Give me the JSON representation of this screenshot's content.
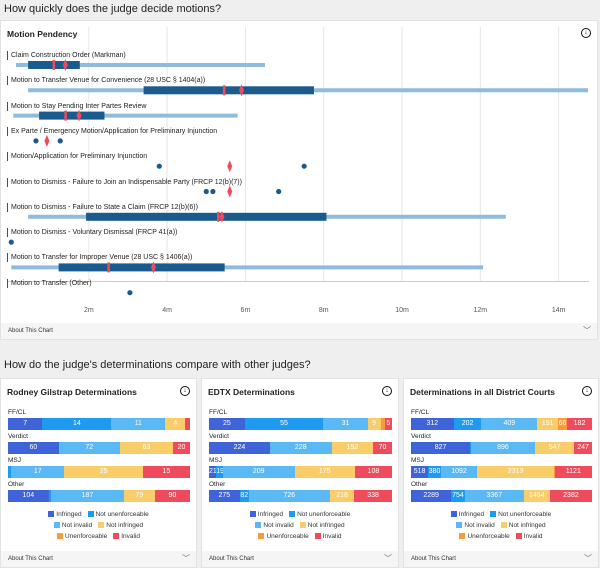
{
  "sections": {
    "pendency_heading": "How quickly does the judge decide motions?",
    "compare_heading": "How do the judge's determinations compare with other judges?"
  },
  "about_label": "About This Chart",
  "colors": {
    "box": "#1b5a8c",
    "whisker": "#8fbcdc",
    "median": "#f04b5c",
    "mean": "#f04b5c",
    "grid": "#e6e6e6"
  },
  "chart_data": [
    {
      "type": "boxplot",
      "title": "Motion Pendency",
      "x_unit": "months",
      "xlim": [
        0,
        14.75
      ],
      "grid": true,
      "x_ticks": [
        "2m",
        "4m",
        "6m",
        "8m",
        "10m",
        "12m",
        "14m"
      ],
      "x_tick_values": [
        2,
        4,
        6,
        8,
        10,
        12,
        14
      ],
      "rows": [
        {
          "label": "Claim Construction Order (Markman)",
          "min": 0.14,
          "q1": 0.45,
          "median": 1.1,
          "q3": 1.77,
          "max": 6.5,
          "mean": 1.4
        },
        {
          "label": "Motion to Transfer Venue for Convenience (28 USC § 1404(a))",
          "min": 0.45,
          "q1": 3.4,
          "median": 5.45,
          "q3": 7.75,
          "max": 14.75,
          "mean": 5.9
        },
        {
          "label": "Motion to Stay Pending Inter Partes Review",
          "min": 0.07,
          "q1": 0.73,
          "median": 1.4,
          "q3": 2.4,
          "max": 5.8,
          "mean": 1.75
        },
        {
          "label": "Ex Parte / Emergency Motion/Application for Preliminary Injunction",
          "points": [
            0.65,
            1.27
          ],
          "mean": 0.93
        },
        {
          "label": "Motion/Application for Preliminary Injunction",
          "points": [
            3.8,
            7.5
          ],
          "mean": 5.6
        },
        {
          "label": "Motion to Dismiss - Failure to Join an Indispensable Party (FRCP 12(b)(7))",
          "points": [
            5.0,
            5.17,
            6.85
          ],
          "mean": 5.6
        },
        {
          "label": "Motion to Dismiss - Failure to State a Claim (FRCP 12(b)(6))",
          "min": 0.45,
          "q1": 1.93,
          "median": 5.3,
          "q3": 8.07,
          "max": 12.65,
          "mean": 5.4
        },
        {
          "label": "Motion to Dismiss - Voluntary Dismissal (FRCP 41(a))",
          "points": [
            0.02
          ]
        },
        {
          "label": "Motion to Transfer for Improper Venue (28 USC § 1406(a))",
          "min": 0.02,
          "q1": 1.23,
          "median": 2.5,
          "q3": 5.47,
          "max": 12.07,
          "mean": 3.65
        },
        {
          "label": "Motion to Transfer (Other)",
          "points": [
            3.05
          ]
        }
      ]
    },
    {
      "type": "stacked-bar",
      "title": "Rodney Gilstrap Determinations",
      "categories": [
        "FF/CL",
        "Verdict",
        "MSJ",
        "Other"
      ],
      "series": [
        {
          "name": "Infringed",
          "values": [
            7,
            60,
            0,
            104
          ]
        },
        {
          "name": "Not unenforceable",
          "values": [
            14,
            0,
            1,
            6
          ]
        },
        {
          "name": "Not invalid",
          "values": [
            11,
            72,
            17,
            187
          ]
        },
        {
          "name": "Not infringed",
          "values": [
            4,
            63,
            25,
            79
          ]
        },
        {
          "name": "Unenforceable",
          "values": [
            0,
            0,
            0,
            0
          ]
        },
        {
          "name": "Invalid",
          "values": [
            1,
            20,
            15,
            90
          ]
        }
      ]
    },
    {
      "type": "stacked-bar",
      "title": "EDTX Determinations",
      "categories": [
        "FF/CL",
        "Verdict",
        "MSJ",
        "Other"
      ],
      "series": [
        {
          "name": "Infringed",
          "values": [
            25,
            224,
            21,
            275
          ]
        },
        {
          "name": "Not unenforceable",
          "values": [
            55,
            0,
            19,
            82
          ]
        },
        {
          "name": "Not invalid",
          "values": [
            31,
            228,
            209,
            726
          ]
        },
        {
          "name": "Not infringed",
          "values": [
            9,
            152,
            175,
            218
          ]
        },
        {
          "name": "Unenforceable",
          "values": [
            3,
            0,
            0,
            0
          ]
        },
        {
          "name": "Invalid",
          "values": [
            5,
            70,
            108,
            338
          ]
        }
      ]
    },
    {
      "type": "stacked-bar",
      "title": "Determinations in all District Courts",
      "categories": [
        "FF/CL",
        "Verdict",
        "MSJ",
        "Other"
      ],
      "series": [
        {
          "name": "Infringed",
          "values": [
            312,
            827,
            518,
            2289
          ]
        },
        {
          "name": "Not unenforceable",
          "values": [
            202,
            10,
            380,
            754
          ]
        },
        {
          "name": "Not invalid",
          "values": [
            409,
            896,
            1092,
            3367
          ]
        },
        {
          "name": "Not infringed",
          "values": [
            151,
            547,
            2313,
            1454
          ]
        },
        {
          "name": "Unenforceable",
          "values": [
            66,
            1,
            20,
            20
          ]
        },
        {
          "name": "Invalid",
          "values": [
            182,
            247,
            1121,
            2382
          ]
        }
      ]
    }
  ],
  "legend": [
    {
      "name": "Infringed",
      "color": "#3f63d8"
    },
    {
      "name": "Not unenforceable",
      "color": "#1e9bf0"
    },
    {
      "name": "Not invalid",
      "color": "#5ab8f5"
    },
    {
      "name": "Not infringed",
      "color": "#f9cd6a"
    },
    {
      "name": "Unenforceable",
      "color": "#f99b3d"
    },
    {
      "name": "Invalid",
      "color": "#f04b5c"
    }
  ]
}
